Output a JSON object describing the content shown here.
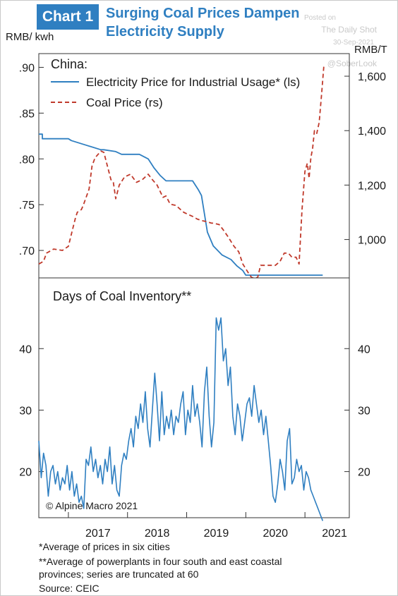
{
  "header": {
    "badge": "Chart 1",
    "title_line1": "Surging Coal Prices Dampen",
    "title_line2": "Electricity Supply"
  },
  "watermark": {
    "posted": "Posted on",
    "source": "The Daily Shot",
    "date": "30-Sep-2021",
    "handle": "@SoberLook"
  },
  "footnotes": {
    "note1": "*Average of prices in six cities",
    "note2_line1": "**Average of powerplants in four south and east coastal",
    "note2_line2": "provinces; series are truncated at 60",
    "source": "Source: CEIC"
  },
  "chart_data": [
    {
      "type": "line",
      "title": "China:",
      "ylabel_left": "RMB/ kwh",
      "ylabel_right": "RMB/T",
      "ylim_left": [
        0.67,
        0.915
      ],
      "ylim_right": [
        859,
        1683
      ],
      "xlim": [
        2016.5,
        2021.75
      ],
      "left_ticks": [
        ".90",
        ".85",
        ".80",
        ".75",
        ".70"
      ],
      "right_ticks": [
        "1,600",
        "1,400",
        "1,200",
        "1,000"
      ],
      "colors": {
        "electricity": "#2f7fc1",
        "coal": "#c0392b"
      },
      "grid": false,
      "legend": "top-left",
      "series": [
        {
          "name": "Electricity Price for Industrial Usage* (ls)",
          "axis": "left",
          "style": "solid",
          "x": [
            2016.5,
            2016.56,
            2016.56,
            2016.8,
            2017.0,
            2017.05,
            2017.3,
            2017.55,
            2017.6,
            2017.8,
            2017.9,
            2018.2,
            2018.35,
            2018.45,
            2018.55,
            2018.65,
            2018.9,
            2019.1,
            2019.2,
            2019.25,
            2019.3,
            2019.35,
            2019.45,
            2019.6,
            2019.75,
            2019.85,
            2019.95,
            2020.0,
            2020.2,
            2020.4,
            2020.6,
            2020.8,
            2021.0,
            2021.2,
            2021.3
          ],
          "y": [
            0.827,
            0.827,
            0.822,
            0.822,
            0.822,
            0.82,
            0.815,
            0.81,
            0.81,
            0.808,
            0.805,
            0.805,
            0.8,
            0.79,
            0.782,
            0.776,
            0.776,
            0.776,
            0.766,
            0.76,
            0.74,
            0.72,
            0.705,
            0.695,
            0.69,
            0.683,
            0.678,
            0.673,
            0.673,
            0.673,
            0.673,
            0.673,
            0.673,
            0.673,
            0.673
          ]
        },
        {
          "name": "Coal Price (rs)",
          "axis": "right",
          "style": "dashed",
          "x": [
            2016.5,
            2016.58,
            2016.63,
            2016.75,
            2016.9,
            2017.0,
            2017.08,
            2017.12,
            2017.15,
            2017.22,
            2017.25,
            2017.35,
            2017.4,
            2017.45,
            2017.55,
            2017.6,
            2017.66,
            2017.72,
            2017.76,
            2017.78,
            2017.8,
            2017.86,
            2017.95,
            2018.05,
            2018.15,
            2018.25,
            2018.35,
            2018.42,
            2018.5,
            2018.6,
            2018.65,
            2018.72,
            2018.82,
            2018.95,
            2019.05,
            2019.1,
            2019.18,
            2019.25,
            2019.35,
            2019.42,
            2019.45,
            2019.55,
            2019.62,
            2019.7,
            2019.8,
            2019.88,
            2019.95,
            2020.05,
            2020.1,
            2020.15,
            2020.2,
            2020.25,
            2020.3,
            2020.35,
            2020.42,
            2020.5,
            2020.58,
            2020.65,
            2020.72,
            2020.78,
            2020.85,
            2020.9,
            2020.95,
            2021.0,
            2021.04,
            2021.07,
            2021.1,
            2021.13,
            2021.16,
            2021.2,
            2021.24,
            2021.28,
            2021.32
          ],
          "y": [
            910,
            920,
            950,
            965,
            960,
            975,
            1045,
            1080,
            1100,
            1110,
            1125,
            1185,
            1270,
            1300,
            1325,
            1320,
            1270,
            1220,
            1210,
            1180,
            1150,
            1200,
            1230,
            1240,
            1210,
            1220,
            1240,
            1220,
            1200,
            1155,
            1160,
            1130,
            1125,
            1100,
            1090,
            1085,
            1075,
            1070,
            1065,
            1060,
            1060,
            1055,
            1035,
            1010,
            975,
            955,
            910,
            875,
            860,
            860,
            860,
            905,
            905,
            905,
            905,
            905,
            920,
            950,
            950,
            935,
            935,
            910,
            1110,
            1250,
            1280,
            1225,
            1300,
            1335,
            1400,
            1390,
            1430,
            1530,
            1640
          ]
        }
      ]
    },
    {
      "type": "line",
      "title": "Days of Coal Inventory**",
      "ylim": [
        12.5,
        51.5
      ],
      "ticks": [
        "40",
        "30",
        "20"
      ],
      "x_ticks": [
        "2017",
        "2018",
        "2019",
        "2020",
        "2021"
      ],
      "xlim": [
        2016.5,
        2021.75
      ],
      "annotation": "© Alpine Macro 2021",
      "grid": false,
      "series": [
        {
          "name": "Days of Coal Inventory**",
          "color": "#2f7fc1",
          "x": [
            2016.5,
            2016.54,
            2016.58,
            2016.62,
            2016.66,
            2016.7,
            2016.74,
            2016.78,
            2016.82,
            2016.86,
            2016.9,
            2016.94,
            2016.98,
            2017.02,
            2017.06,
            2017.1,
            2017.14,
            2017.18,
            2017.22,
            2017.26,
            2017.3,
            2017.34,
            2017.38,
            2017.42,
            2017.46,
            2017.5,
            2017.54,
            2017.58,
            2017.62,
            2017.66,
            2017.7,
            2017.74,
            2017.78,
            2017.82,
            2017.86,
            2017.9,
            2017.94,
            2017.98,
            2018.02,
            2018.06,
            2018.1,
            2018.14,
            2018.18,
            2018.22,
            2018.26,
            2018.3,
            2018.34,
            2018.38,
            2018.42,
            2018.46,
            2018.5,
            2018.54,
            2018.58,
            2018.62,
            2018.66,
            2018.7,
            2018.74,
            2018.78,
            2018.82,
            2018.86,
            2018.9,
            2018.94,
            2018.98,
            2019.02,
            2019.06,
            2019.1,
            2019.14,
            2019.18,
            2019.22,
            2019.26,
            2019.3,
            2019.34,
            2019.38,
            2019.42,
            2019.46,
            2019.5,
            2019.54,
            2019.58,
            2019.62,
            2019.66,
            2019.7,
            2019.74,
            2019.78,
            2019.82,
            2019.86,
            2019.9,
            2019.94,
            2019.98,
            2020.02,
            2020.06,
            2020.1,
            2020.14,
            2020.18,
            2020.22,
            2020.26,
            2020.3,
            2020.34,
            2020.38,
            2020.42,
            2020.46,
            2020.5,
            2020.54,
            2020.58,
            2020.62,
            2020.66,
            2020.7,
            2020.74,
            2020.78,
            2020.82,
            2020.86,
            2020.9,
            2020.94,
            2020.98,
            2021.02,
            2021.06,
            2021.1,
            2021.14,
            2021.18,
            2021.22,
            2021.26,
            2021.3
          ],
          "y": [
            25,
            19,
            23,
            21,
            16,
            20,
            21,
            18,
            20,
            17,
            19,
            18,
            21,
            17,
            20,
            16,
            18,
            15,
            16,
            14,
            22,
            21,
            24,
            20,
            22,
            19,
            21,
            18,
            22,
            20,
            24,
            18,
            21,
            17,
            16,
            21,
            23,
            22,
            25,
            27,
            24,
            29,
            27,
            31,
            28,
            33,
            27,
            24,
            30,
            36,
            31,
            25,
            33,
            26,
            29,
            27,
            30,
            26,
            29,
            28,
            31,
            33,
            26,
            30,
            28,
            34,
            29,
            31,
            28,
            24,
            33,
            37,
            29,
            24,
            28,
            45,
            43,
            45,
            38,
            40,
            34,
            37,
            29,
            26,
            31,
            29,
            25,
            28,
            31,
            32,
            29,
            34,
            31,
            28,
            30,
            26,
            29,
            25,
            21,
            16,
            15,
            18,
            22,
            20,
            17,
            25,
            27,
            18,
            19,
            22,
            20,
            21,
            17,
            20,
            19,
            17,
            16,
            15,
            14,
            13,
            12
          ]
        }
      ]
    }
  ]
}
